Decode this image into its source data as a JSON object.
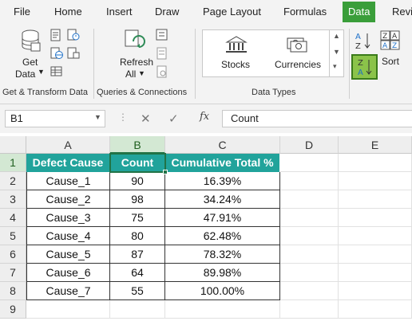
{
  "ribbon_tabs": [
    {
      "label": "File"
    },
    {
      "label": "Home"
    },
    {
      "label": "Insert"
    },
    {
      "label": "Draw"
    },
    {
      "label": "Page Layout"
    },
    {
      "label": "Formulas"
    },
    {
      "label": "Data"
    },
    {
      "label": "Revi"
    }
  ],
  "active_tab": "Data",
  "ribbon": {
    "get_data_line1": "Get",
    "get_data_line2": "Data",
    "refresh_line1": "Refresh",
    "refresh_line2": "All",
    "stocks": "Stocks",
    "currencies": "Currencies",
    "sort": "Sort",
    "groups": {
      "get_transform": "Get & Transform Data",
      "queries": "Queries & Connections",
      "data_types": "Data Types"
    }
  },
  "formula_bar": {
    "name_box": "B1",
    "fx": "fx",
    "content": "Count"
  },
  "sheet": {
    "columns": [
      "A",
      "B",
      "C",
      "D",
      "E"
    ],
    "rows": [
      "1",
      "2",
      "3",
      "4",
      "5",
      "6",
      "7",
      "8",
      "9"
    ],
    "headers": [
      "Defect Cause",
      "Count",
      "Cumulative Total %"
    ],
    "data": [
      [
        "Cause_1",
        "90",
        "16.39%"
      ],
      [
        "Cause_2",
        "98",
        "34.24%"
      ],
      [
        "Cause_3",
        "75",
        "47.91%"
      ],
      [
        "Cause_4",
        "80",
        "62.48%"
      ],
      [
        "Cause_5",
        "87",
        "78.32%"
      ],
      [
        "Cause_6",
        "64",
        "89.98%"
      ],
      [
        "Cause_7",
        "55",
        "100.00%"
      ]
    ],
    "selected_cell": "B1"
  },
  "colors": {
    "header_fill": "#21a39b",
    "accent": "#217346",
    "data_tab": "#3a9e3a"
  }
}
